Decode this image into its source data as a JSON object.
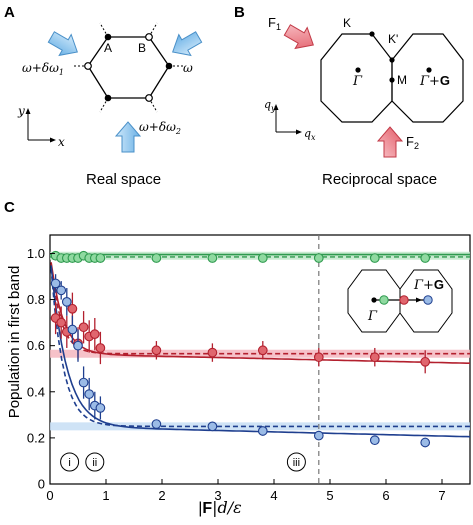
{
  "panel_a": {
    "label": "A",
    "caption": "Real space",
    "site_a": "A",
    "site_b": "B",
    "axis_x": "x",
    "axis_y": "y",
    "freq_left": "ω+δω",
    "freq_left_sub": "1",
    "freq_right": "ω",
    "freq_bottom": "ω+δω",
    "freq_bottom_sub": "2"
  },
  "panel_b": {
    "label": "B",
    "caption": "Reciprocal space",
    "force1": "F",
    "force1_sub": "1",
    "force2": "F",
    "force2_sub": "2",
    "point_k": "K",
    "point_kp": "K'",
    "point_gamma": "Γ",
    "point_m": "M",
    "point_gamma_g": "Γ+",
    "point_gamma_g_bold": "G",
    "axis_qy": "q",
    "axis_qy_sub": "y",
    "axis_qx": "q",
    "axis_qx_sub": "x"
  },
  "panel_c": {
    "label": "C",
    "inset_gamma": "Γ",
    "inset_gamma_g": "Γ+",
    "inset_gamma_g_bold": "G",
    "markers": [
      "i",
      "ii",
      "iii"
    ]
  },
  "colors": {
    "green": "#2e9a4e",
    "green_fill": "#8fd9a0",
    "red": "#b3202e",
    "red_fill": "#e0666e",
    "blue": "#1f3f8f",
    "blue_fill": "#9bbbe6",
    "arrow_blue": "#8cc8f0",
    "arrow_red": "#ee7a86"
  },
  "chart_data": {
    "type": "scatter",
    "xlabel_pre": "|",
    "xlabel_bold": "F",
    "xlabel_post": "|d/ε",
    "ylabel": "Population in first band",
    "xlim": [
      0,
      7.5
    ],
    "ylim": [
      0,
      1.08
    ],
    "xticks": [
      0,
      1,
      2,
      3,
      4,
      5,
      6,
      7
    ],
    "yticks": [
      0,
      0.2,
      0.4,
      0.6,
      0.8,
      1.0
    ],
    "ytick_labels": [
      "0",
      "0.2",
      "0.4",
      "0.6",
      "0.8",
      "1.0"
    ],
    "vline_x": 4.8,
    "series": [
      {
        "key": "green",
        "points": [
          [
            0.1,
            0.99
          ],
          [
            0.2,
            0.98
          ],
          [
            0.3,
            0.98
          ],
          [
            0.4,
            0.98
          ],
          [
            0.5,
            0.98
          ],
          [
            0.6,
            0.99
          ],
          [
            0.7,
            0.98
          ],
          [
            0.8,
            0.98
          ],
          [
            0.9,
            0.98
          ],
          [
            1.9,
            0.98
          ],
          [
            2.9,
            0.98
          ],
          [
            3.8,
            0.98
          ],
          [
            4.8,
            0.98
          ],
          [
            5.8,
            0.98
          ],
          [
            6.7,
            0.98
          ]
        ],
        "errors": [
          0.02,
          0.02,
          0.02,
          0.02,
          0.02,
          0.02,
          0.02,
          0.02,
          0.02,
          0.01,
          0.01,
          0.01,
          0.01,
          0.01,
          0.01
        ],
        "fit_solid": [
          [
            0,
            0.995
          ],
          [
            7.5,
            0.995
          ]
        ],
        "fit_dashed": [
          [
            0,
            0.99
          ],
          [
            7.5,
            0.99
          ]
        ],
        "band": 0.99
      },
      {
        "key": "red",
        "points": [
          [
            0.1,
            0.72
          ],
          [
            0.2,
            0.7
          ],
          [
            0.3,
            0.66
          ],
          [
            0.4,
            0.76
          ],
          [
            0.5,
            0.61
          ],
          [
            0.6,
            0.68
          ],
          [
            0.7,
            0.64
          ],
          [
            0.8,
            0.65
          ],
          [
            0.9,
            0.59
          ],
          [
            1.9,
            0.58
          ],
          [
            2.9,
            0.57
          ],
          [
            3.8,
            0.58
          ],
          [
            4.8,
            0.55
          ],
          [
            5.8,
            0.55
          ],
          [
            6.7,
            0.53
          ]
        ],
        "errors": [
          0.07,
          0.07,
          0.07,
          0.07,
          0.07,
          0.07,
          0.07,
          0.07,
          0.07,
          0.04,
          0.04,
          0.04,
          0.04,
          0.04,
          0.05
        ],
        "band": 0.565
      },
      {
        "key": "blue",
        "points": [
          [
            0.1,
            0.87
          ],
          [
            0.2,
            0.84
          ],
          [
            0.3,
            0.79
          ],
          [
            0.4,
            0.67
          ],
          [
            0.5,
            0.6
          ],
          [
            0.6,
            0.44
          ],
          [
            0.7,
            0.39
          ],
          [
            0.8,
            0.34
          ],
          [
            0.9,
            0.33
          ],
          [
            1.9,
            0.26
          ],
          [
            2.9,
            0.25
          ],
          [
            3.8,
            0.23
          ],
          [
            4.8,
            0.21
          ],
          [
            5.8,
            0.19
          ],
          [
            6.7,
            0.18
          ]
        ],
        "errors": [
          0.04,
          0.04,
          0.06,
          0.06,
          0.07,
          0.07,
          0.07,
          0.06,
          0.05,
          0.02,
          0.02,
          0.02,
          0.02,
          0.02,
          0.02
        ],
        "band": 0.25
      }
    ],
    "markers_x": [
      0.35,
      0.8,
      4.4
    ]
  }
}
